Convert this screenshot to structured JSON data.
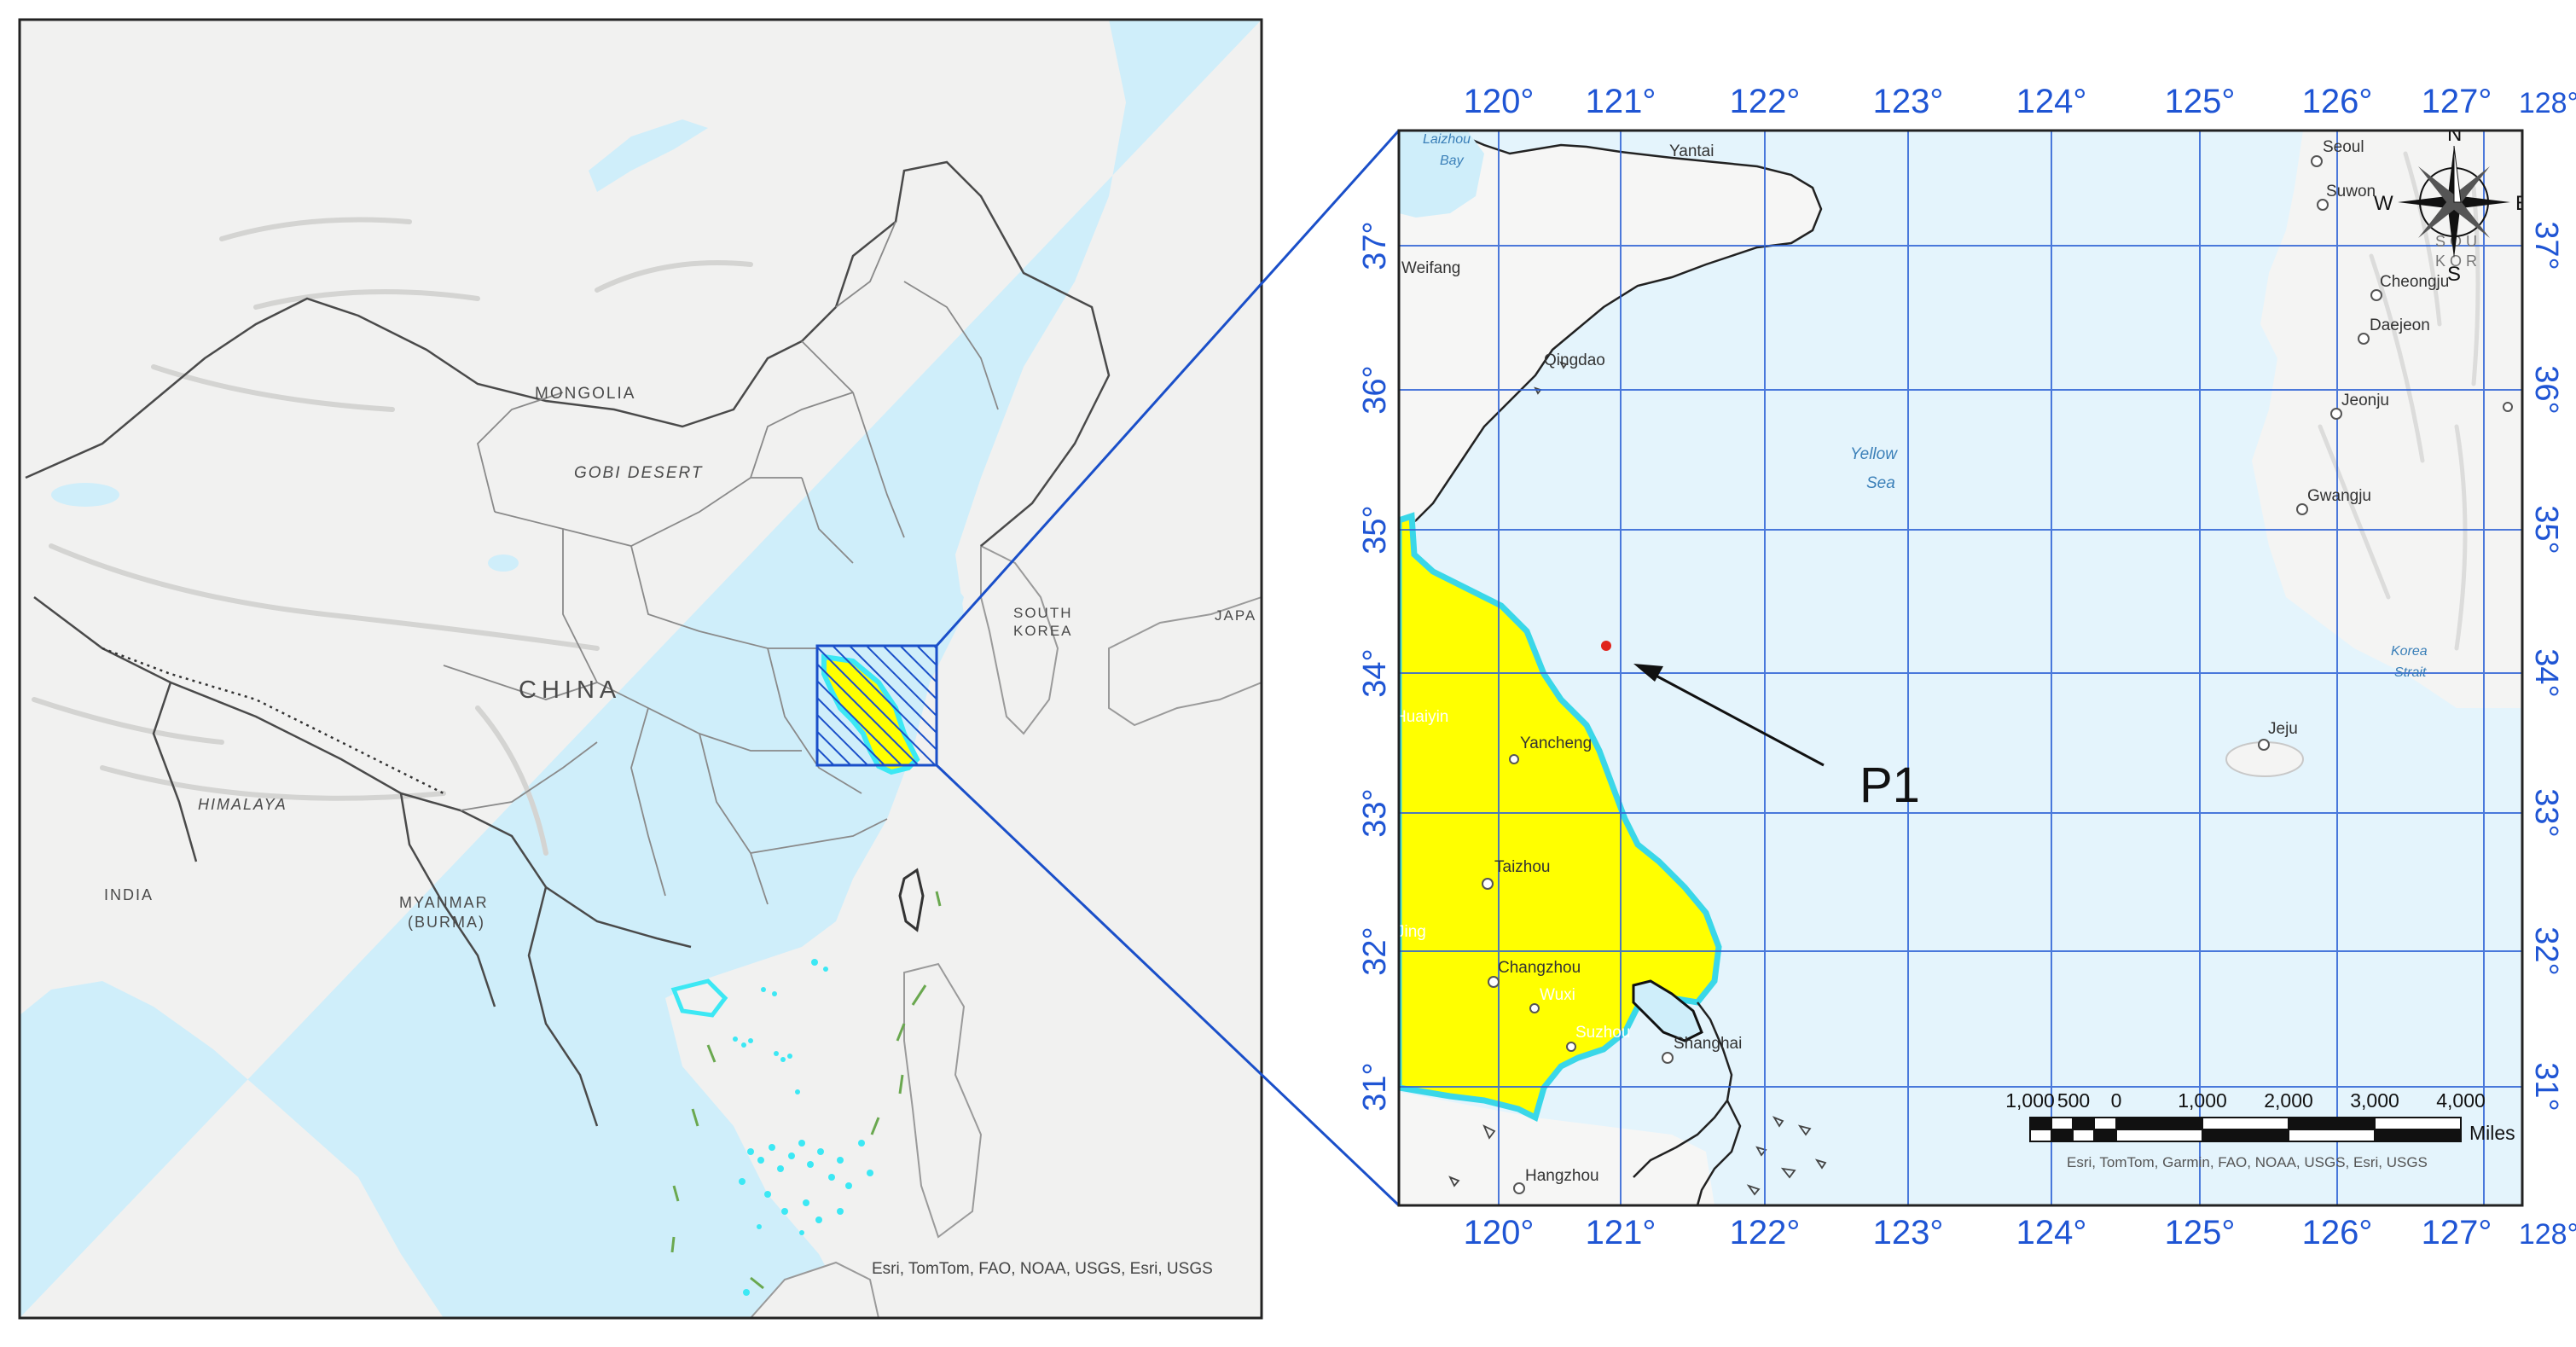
{
  "overview_map": {
    "labels": {
      "mongolia": "MONGOLIA",
      "gobi": "GOBI DESERT",
      "china": "CHINA",
      "south_korea_1": "SOUTH",
      "south_korea_2": "KOREA",
      "japan": "JAPA",
      "himalaya": "HIMALAYA",
      "india": "INDIA",
      "myanmar_1": "MYANMAR",
      "myanmar_2": "(BURMA)"
    },
    "attribution": "Esri, TomTom, FAO, NOAA, USGS, Esri, USGS",
    "colors": {
      "land": "#f1f1f0",
      "water": "#cfeefa",
      "boundary": "#555555",
      "highlight": "#1a4fc9",
      "study_fill": "#ffff00",
      "study_edge": "#44e0ee"
    }
  },
  "detail_map": {
    "longitude_labels": [
      "120°",
      "121°",
      "122°",
      "123°",
      "124°",
      "125°",
      "126°",
      "127°",
      "128°"
    ],
    "latitude_labels": [
      "37°",
      "36°",
      "35°",
      "34°",
      "33°",
      "32°",
      "31°"
    ],
    "places": {
      "laizhou_1": "Laizhou",
      "laizhou_2": "Bay",
      "yantai": "Yantai",
      "weifang": "Weifang",
      "qingdao": "Qingdao",
      "yellow_sea_1": "Yellow",
      "yellow_sea_2": "Sea",
      "huaiyin": "Huaiyin",
      "yancheng": "Yancheng",
      "taizhou": "Taizhou",
      "jiangyin": "Jing",
      "changzhou": "Changzhou",
      "wuxi": "Wuxi",
      "suzhou": "Suzhou",
      "shanghai": "Shanghai",
      "hangzhou": "Hangzhou",
      "seoul": "Seoul",
      "suwon": "Suwon",
      "cheongju": "Cheongju",
      "daejeon": "Daejeon",
      "jeonju": "Jeonju",
      "gwangju": "Gwangju",
      "korea_strait_1": "Korea",
      "korea_strait_2": "Strait",
      "jeju": "Jeju",
      "sou": "SOU",
      "kor": "KOR"
    },
    "point_label": "P1",
    "compass": {
      "n": "N",
      "s": "S",
      "e": "E",
      "w": "W"
    },
    "scale_bar": {
      "ticks": [
        "1,000",
        "500",
        "0",
        "1,000",
        "2,000",
        "3,000",
        "4,000"
      ],
      "unit": "Miles"
    },
    "attribution": "Esri, TomTom, Garmin, FAO, NOAA, USGS, Esri, USGS",
    "colors": {
      "sea": "#e4f4fc",
      "grid": "#2f63d6",
      "coord_label": "#1f55d4",
      "province": "#ffff00",
      "province_edge": "#3ad7e8",
      "point": "#e0241c"
    }
  }
}
